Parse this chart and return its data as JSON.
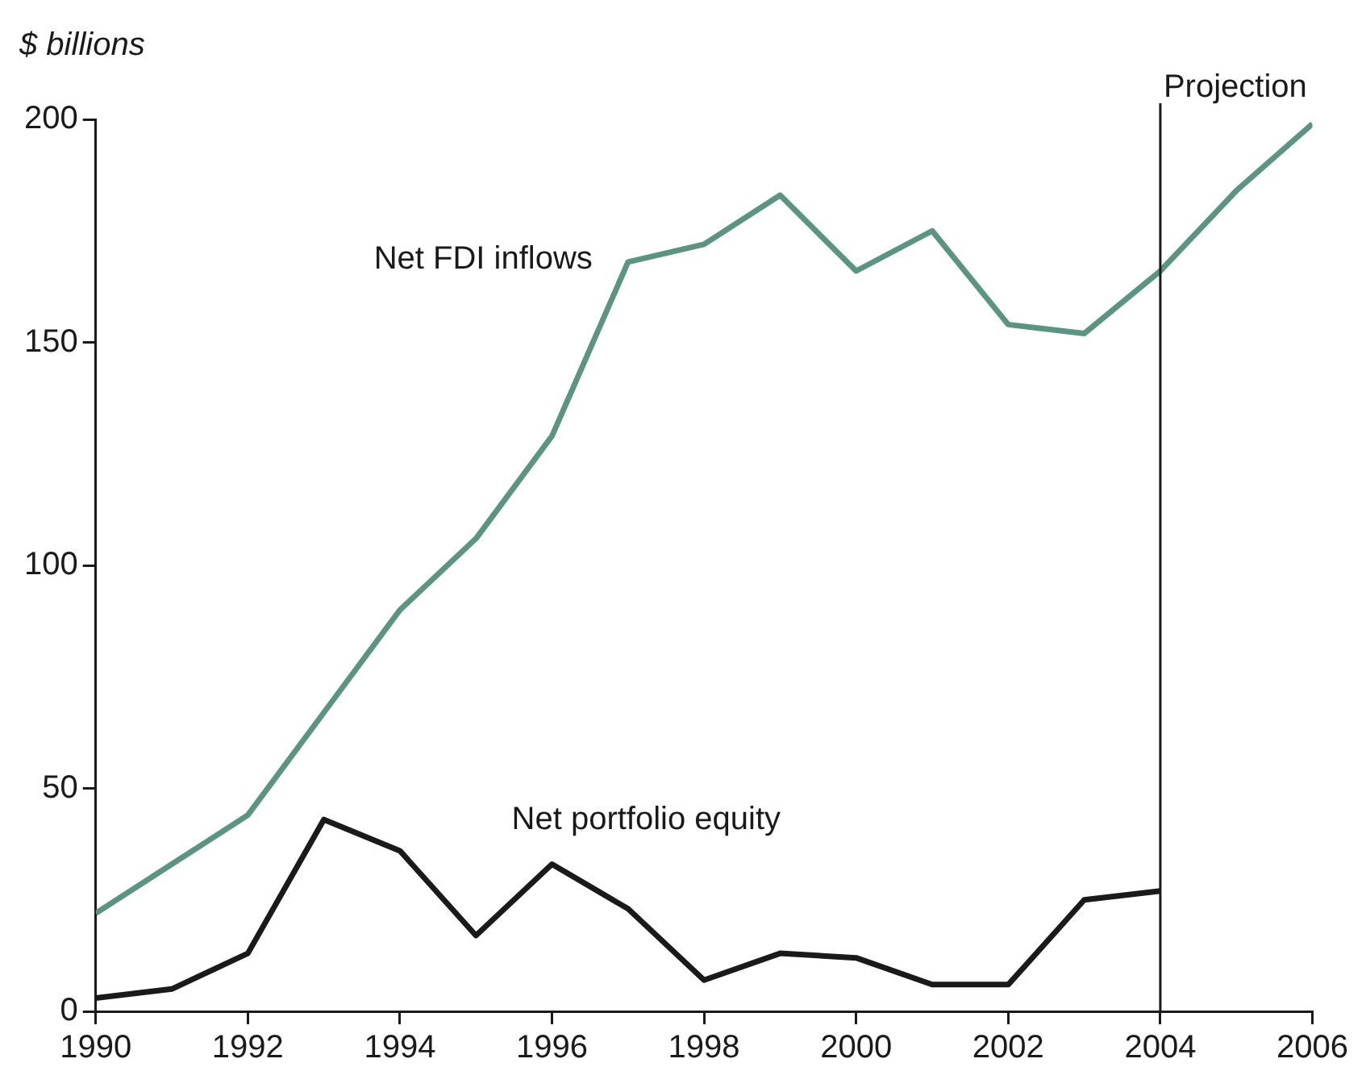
{
  "chart_data": {
    "type": "line",
    "ylabel": "$ billions",
    "x": [
      1990,
      1991,
      1992,
      1993,
      1994,
      1995,
      1996,
      1997,
      1998,
      1999,
      2000,
      2001,
      2002,
      2003,
      2004,
      2005,
      2006
    ],
    "series": [
      {
        "name": "Net FDI inflows",
        "color": "#5b9582",
        "values": [
          22,
          33,
          44,
          67,
          90,
          106,
          129,
          168,
          172,
          183,
          166,
          175,
          154,
          152,
          166,
          184,
          199
        ]
      },
      {
        "name": "Net portfolio equity",
        "color": "#1a1a1a",
        "values": [
          3,
          5,
          13,
          43,
          36,
          17,
          33,
          23,
          7,
          13,
          12,
          6,
          6,
          25,
          27,
          null,
          null
        ]
      }
    ],
    "xlim": [
      1990,
      2006
    ],
    "xticks": [
      1990,
      1992,
      1994,
      1996,
      1998,
      2000,
      2002,
      2004,
      2006
    ],
    "ylim": [
      0,
      200
    ],
    "yticks": [
      0,
      50,
      100,
      150,
      200
    ],
    "ref_lines": [
      {
        "axis": "x",
        "value": 2004,
        "label": "Projection",
        "color": "#1a1a1a"
      }
    ],
    "grid": false,
    "legend": false,
    "marker": "none",
    "line_style": "solid"
  }
}
